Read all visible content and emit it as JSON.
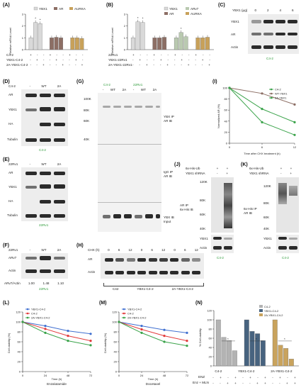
{
  "panel_labels": {
    "A": "(A)",
    "B": "(B)",
    "C": "(C)",
    "D": "(D)",
    "E": "(E)",
    "F": "(F)",
    "G": "(G)",
    "H": "(H)",
    "I": "(I)",
    "J": "(J)",
    "K": "(K)",
    "L": "(L)",
    "M": "(M)",
    "N": "(N)"
  },
  "colors": {
    "ybx1": "#d9d9d9",
    "ar": "#8c6e64",
    "arv7": "#b9c9b0",
    "aurka": "#c8a15a",
    "green_text": "#2e9b3a",
    "line_blue": "#3f6fd0",
    "line_red": "#e23a3a",
    "line_green": "#3aa34a",
    "bar_grey": "#b3b3b3",
    "bar_blue": "#47637f",
    "bar_orange": "#c9a35d"
  },
  "panelA": {
    "legend": [
      "YBX1",
      "AR",
      "AURKA"
    ],
    "ylabel": "Relative mRNA Level",
    "row_labels": [
      "C4-2",
      "YBX1-C4-2",
      "2A-YBX1-C4-2"
    ],
    "row_signs": [
      [
        "+",
        "-",
        "-",
        "+",
        "-",
        "-",
        "+",
        "-",
        "-"
      ],
      [
        "-",
        "+",
        "-",
        "-",
        "+",
        "-",
        "-",
        "+",
        "-"
      ],
      [
        "-",
        "-",
        "+",
        "-",
        "-",
        "+",
        "-",
        "-",
        "+"
      ]
    ]
  },
  "panelB": {
    "legend": [
      "YBX1",
      "AR",
      "ARv7",
      "AURKA"
    ],
    "ylabel": "Relative mRNA Level",
    "row_labels": [
      "22Rv1",
      "YBX1-22Rv1",
      "2A-YBX1-22Rv1"
    ],
    "row_signs": [
      [
        "+",
        "-",
        "-",
        "+",
        "-",
        "-",
        "+",
        "-",
        "-",
        "+",
        "-",
        "-"
      ],
      [
        "-",
        "+",
        "-",
        "-",
        "+",
        "-",
        "-",
        "+",
        "-",
        "-",
        "+",
        "-"
      ],
      [
        "-",
        "-",
        "+",
        "-",
        "-",
        "+",
        "-",
        "-",
        "+",
        "-",
        "-",
        "+"
      ]
    ]
  },
  "panelC": {
    "header": "YBX1 (μg)",
    "doses": [
      "0",
      "2",
      "4",
      "6"
    ],
    "rows": [
      "YBX1",
      "AR",
      "Actin"
    ],
    "cell": "C4-2"
  },
  "panelD": {
    "cols": [
      "-",
      "WT",
      "2A"
    ],
    "corner": "C4-2",
    "rows": [
      "AR",
      "YBX1",
      "HA",
      "Tubulin"
    ],
    "cell": "C4-2"
  },
  "panelE": {
    "cols": [
      "-",
      "WT",
      "2A"
    ],
    "corner": "22Rv1",
    "rows": [
      "AR",
      "YBX1",
      "HA",
      "Tubulin"
    ],
    "cell": "22Rv1"
  },
  "panelF": {
    "cols": [
      "-",
      "WT",
      "2A"
    ],
    "corner": "22Rv1",
    "rows": [
      "ARv7",
      "Actin"
    ],
    "ratio_label": "ARv7/Actin",
    "ratios": [
      "1.00",
      "1.48",
      "1.10"
    ],
    "cell": "22Rv1"
  },
  "panelG": {
    "cells": [
      "C4-2",
      "22Rv1"
    ],
    "cols": [
      "-",
      "WT",
      "2A",
      "-",
      "WT",
      "2A"
    ],
    "mw": [
      "100K",
      "80K",
      "60K",
      "40K"
    ],
    "labels": [
      "YBX IP\nAR IB",
      "IgG IP\nAR IB",
      "YBX IB\nInput"
    ]
  },
  "panelH": {
    "header": "CHX (h)",
    "times": [
      "0",
      "6",
      "12",
      "0",
      "6",
      "12",
      "0",
      "6",
      "12"
    ],
    "rows": [
      "AR",
      "Actin"
    ],
    "groups": [
      "C42",
      "YBX1-C4-2",
      "2A-YBX1-C4-2"
    ]
  },
  "panelJ": {
    "rows_top": [
      "6x-His-Ub",
      "YBX1 shRNA"
    ],
    "signs": [
      [
        "+",
        "+"
      ],
      [
        "-",
        "+"
      ]
    ],
    "mw": [
      "120K",
      "80K",
      "60K",
      "40K"
    ],
    "ip_label": "AR IP\n6x-His IB",
    "rows": [
      "YBX1",
      "Actin"
    ],
    "cell": "C4-2"
  },
  "panelK": {
    "rows_top": [
      "6x-His-Ub",
      "YBX1 shRNA"
    ],
    "signs": [
      [
        "+",
        "+"
      ],
      [
        "-",
        "+"
      ]
    ],
    "mw": [
      "120K",
      "80K",
      "60K",
      "40K"
    ],
    "ip_label": "6x-His IP\nAR IB",
    "rows": [
      "YBX1",
      "Actin"
    ],
    "cell": "C4-2"
  },
  "panelI": {
    "legend": [
      "C4-2",
      "WT-YBX1",
      "2A-YBX1"
    ],
    "xlabel": "Time after CHX treatment (h)",
    "ylabel": "Normalized AR (%)"
  },
  "panelL": {
    "legend": [
      "YBX1-C4-2",
      "C4-2",
      "2A-YBX1-C4-2"
    ],
    "xlabel": "Time (h)",
    "sub": "Enzalutamide",
    "ylabel": "Cell viability (%)"
  },
  "panelM": {
    "legend": [
      "YBX1-C4-2",
      "C4-2",
      "2A-YBX1-C4-2"
    ],
    "xlabel": "Time (h)",
    "sub": "Docetaxel",
    "ylabel": "Cell viability (%)"
  },
  "panelN": {
    "legend": [
      "C4-2",
      "YBX1-C4-2",
      "2A-YBX1-C4-2"
    ],
    "ylabel": "% Cell viability",
    "groups": [
      "C4-2",
      "YBX1-C4-2",
      "2A-YBX1-C4-2"
    ],
    "row_labels": [
      "ENZ",
      "Enz + MLN"
    ]
  },
  "chart_data": [
    {
      "type": "bar",
      "id": "A",
      "categories": [
        "YBX1",
        "AR",
        "AURKA"
      ],
      "series": [
        {
          "name": "C4-2",
          "values": [
            1.0,
            1.0,
            1.0
          ]
        },
        {
          "name": "YBX1-C4-2",
          "values": [
            2.3,
            1.05,
            1.0
          ]
        },
        {
          "name": "2A-YBX1-C4-2",
          "values": [
            2.2,
            1.0,
            0.95
          ]
        }
      ],
      "ylim": [
        0,
        3
      ],
      "yticks": [
        0,
        1,
        2,
        3
      ]
    },
    {
      "type": "bar",
      "id": "B",
      "categories": [
        "YBX1",
        "AR",
        "ARv7",
        "AURKA"
      ],
      "series": [
        {
          "name": "22Rv1",
          "values": [
            1.0,
            1.0,
            1.0,
            1.0
          ]
        },
        {
          "name": "YBX1-22Rv1",
          "values": [
            2.35,
            1.0,
            1.45,
            1.0
          ]
        },
        {
          "name": "2A-YBX1-22Rv1",
          "values": [
            2.3,
            1.05,
            1.1,
            1.05
          ]
        }
      ],
      "ylim": [
        0,
        3
      ],
      "yticks": [
        0,
        1,
        2,
        3
      ]
    },
    {
      "type": "line",
      "id": "I",
      "x": [
        0,
        6,
        12
      ],
      "series": [
        {
          "name": "C4-2",
          "values": [
            100,
            38,
            15
          ]
        },
        {
          "name": "WT-YBX1",
          "values": [
            100,
            90,
            70
          ]
        },
        {
          "name": "2A-YBX1",
          "values": [
            100,
            62,
            38
          ]
        }
      ],
      "xlim": [
        0,
        12
      ],
      "ylim": [
        0,
        100
      ],
      "yticks": [
        0,
        20,
        40,
        60,
        80,
        100
      ]
    },
    {
      "type": "line",
      "id": "L",
      "x": [
        0,
        24,
        48,
        72
      ],
      "series": [
        {
          "name": "YBX1-C4-2",
          "values": [
            100,
            92,
            82,
            76
          ]
        },
        {
          "name": "C4-2",
          "values": [
            100,
            86,
            72,
            62
          ]
        },
        {
          "name": "2A-YBX1-C4-2",
          "values": [
            100,
            78,
            62,
            53
          ]
        }
      ],
      "xlim": [
        0,
        72
      ],
      "ylim": [
        0,
        120
      ],
      "yticks": [
        0,
        20,
        40,
        60,
        80,
        100,
        120
      ]
    },
    {
      "type": "line",
      "id": "M",
      "x": [
        0,
        24,
        48,
        72
      ],
      "series": [
        {
          "name": "YBX1-C4-2",
          "values": [
            100,
            92,
            84,
            78
          ]
        },
        {
          "name": "C4-2",
          "values": [
            100,
            85,
            72,
            62
          ]
        },
        {
          "name": "2A-YBX1-C4-2",
          "values": [
            100,
            78,
            60,
            52
          ]
        }
      ],
      "xlim": [
        0,
        72
      ],
      "ylim": [
        0,
        120
      ],
      "yticks": [
        0,
        20,
        40,
        60,
        80,
        100,
        120
      ]
    },
    {
      "type": "bar",
      "id": "N",
      "categories": [
        "C4-2",
        "YBX1-C4-2",
        "2A-YBX1-C4-2"
      ],
      "series": [
        {
          "name": "-",
          "values": [
            100,
            100,
            100
          ]
        },
        {
          "name": "ENZ",
          "values": [
            62,
            75,
            45
          ]
        },
        {
          "name": "MLN",
          "values": [
            55,
            70,
            38
          ]
        },
        {
          "name": "Enz + MLN",
          "values": [
            33,
            55,
            15
          ]
        }
      ],
      "ylim": [
        0,
        120
      ],
      "yticks": [
        0,
        20,
        40,
        60,
        80,
        100,
        120
      ]
    }
  ]
}
